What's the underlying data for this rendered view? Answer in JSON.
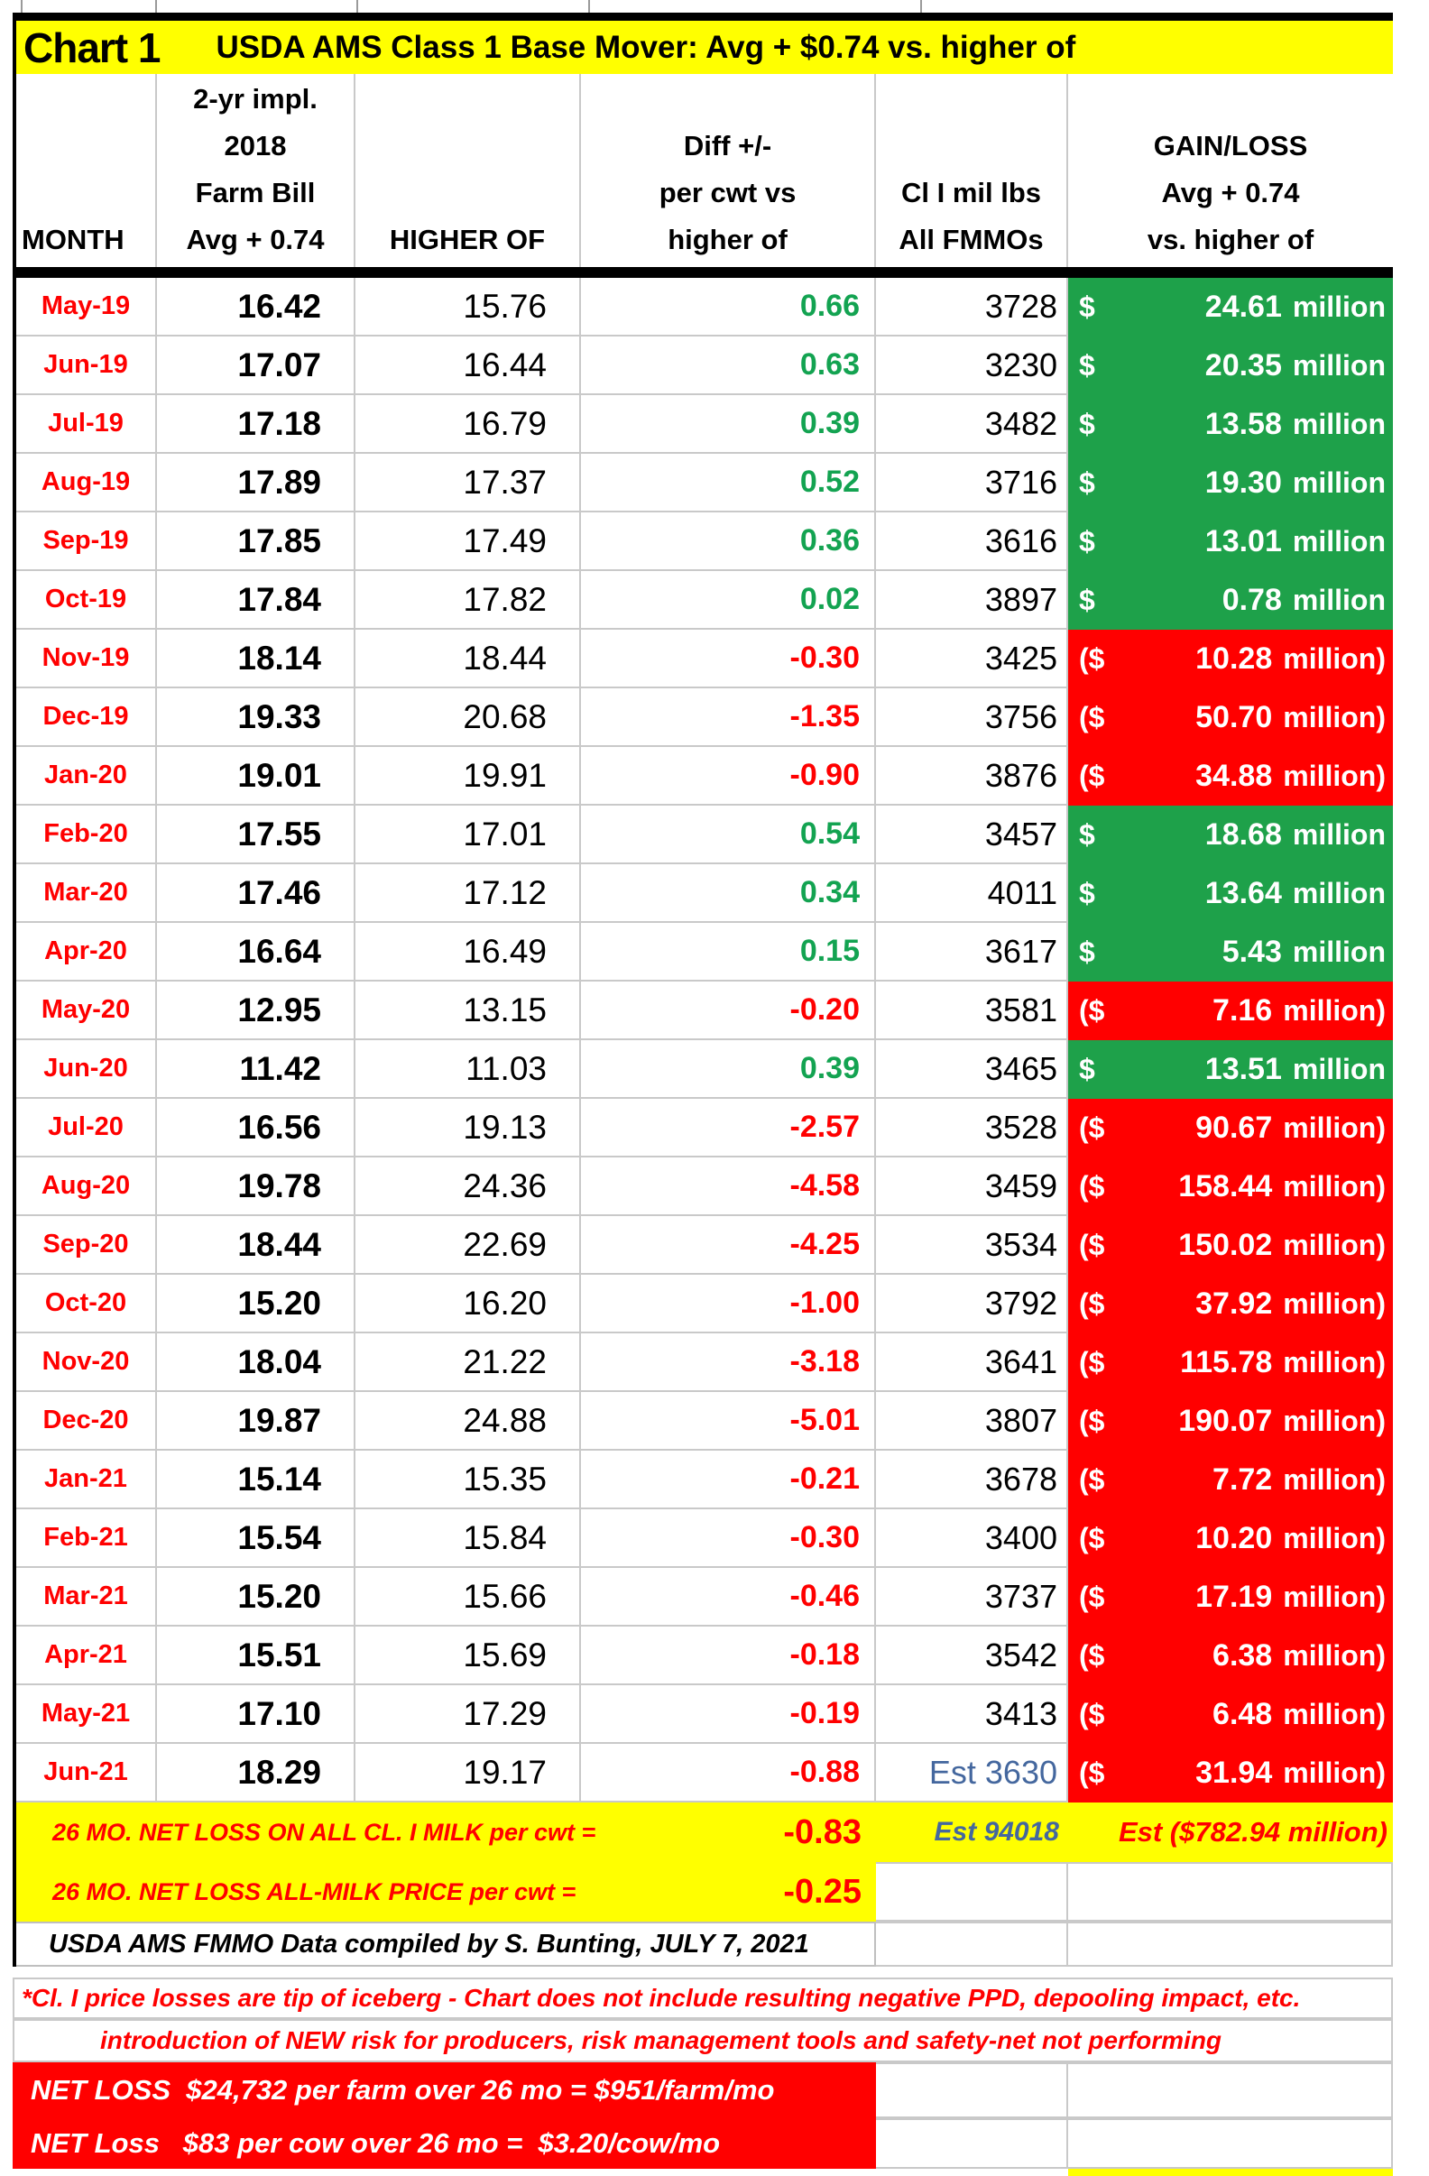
{
  "title_row": {
    "chart_label": "Chart 1",
    "title": "USDA AMS Class 1 Base Mover: Avg + $0.74 vs. higher of"
  },
  "header": {
    "month": "MONTH",
    "avg_lines": [
      "2-yr impl.",
      "2018",
      "Farm Bill",
      "Avg + 0.74"
    ],
    "higher_of": "HIGHER OF",
    "diff_lines": [
      "Diff +/-",
      "per cwt  vs",
      "higher of"
    ],
    "volume_lines": [
      "Cl I mil lbs",
      "All FMMOs"
    ],
    "gain_lines": [
      "GAIN/LOSS",
      "Avg + 0.74",
      "vs. higher of"
    ]
  },
  "gain_format": {
    "gain_prefix": "$",
    "gain_suffix": "million",
    "loss_prefix": "($",
    "loss_suffix": "million)"
  },
  "chart_data": {
    "type": "table",
    "title": "USDA AMS Class 1 Base Mover: Avg + $0.74 vs. higher of",
    "columns": [
      "MONTH",
      "2-yr impl. 2018 Farm Bill Avg + 0.74",
      "HIGHER OF",
      "Diff +/- per cwt vs higher of",
      "Cl I mil lbs All FMMOs",
      "GAIN/LOSS Avg + 0.74 vs. higher of"
    ],
    "rows": [
      {
        "month": "May-19",
        "avg_074": "16.42",
        "higher_of": "15.76",
        "diff": "0.66",
        "direction": "gain",
        "cl1_mil_lbs": "3728",
        "gain_loss_million": "24.61"
      },
      {
        "month": "Jun-19",
        "avg_074": "17.07",
        "higher_of": "16.44",
        "diff": "0.63",
        "direction": "gain",
        "cl1_mil_lbs": "3230",
        "gain_loss_million": "20.35"
      },
      {
        "month": "Jul-19",
        "avg_074": "17.18",
        "higher_of": "16.79",
        "diff": "0.39",
        "direction": "gain",
        "cl1_mil_lbs": "3482",
        "gain_loss_million": "13.58"
      },
      {
        "month": "Aug-19",
        "avg_074": "17.89",
        "higher_of": "17.37",
        "diff": "0.52",
        "direction": "gain",
        "cl1_mil_lbs": "3716",
        "gain_loss_million": "19.30"
      },
      {
        "month": "Sep-19",
        "avg_074": "17.85",
        "higher_of": "17.49",
        "diff": "0.36",
        "direction": "gain",
        "cl1_mil_lbs": "3616",
        "gain_loss_million": "13.01"
      },
      {
        "month": "Oct-19",
        "avg_074": "17.84",
        "higher_of": "17.82",
        "diff": "0.02",
        "direction": "gain",
        "cl1_mil_lbs": "3897",
        "gain_loss_million": "0.78"
      },
      {
        "month": "Nov-19",
        "avg_074": "18.14",
        "higher_of": "18.44",
        "diff": "-0.30",
        "direction": "loss",
        "cl1_mil_lbs": "3425",
        "gain_loss_million": "10.28"
      },
      {
        "month": "Dec-19",
        "avg_074": "19.33",
        "higher_of": "20.68",
        "diff": "-1.35",
        "direction": "loss",
        "cl1_mil_lbs": "3756",
        "gain_loss_million": "50.70"
      },
      {
        "month": "Jan-20",
        "avg_074": "19.01",
        "higher_of": "19.91",
        "diff": "-0.90",
        "direction": "loss",
        "cl1_mil_lbs": "3876",
        "gain_loss_million": "34.88"
      },
      {
        "month": "Feb-20",
        "avg_074": "17.55",
        "higher_of": "17.01",
        "diff": "0.54",
        "direction": "gain",
        "cl1_mil_lbs": "3457",
        "gain_loss_million": "18.68"
      },
      {
        "month": "Mar-20",
        "avg_074": "17.46",
        "higher_of": "17.12",
        "diff": "0.34",
        "direction": "gain",
        "cl1_mil_lbs": "4011",
        "gain_loss_million": "13.64"
      },
      {
        "month": "Apr-20",
        "avg_074": "16.64",
        "higher_of": "16.49",
        "diff": "0.15",
        "direction": "gain",
        "cl1_mil_lbs": "3617",
        "gain_loss_million": "5.43"
      },
      {
        "month": "May-20",
        "avg_074": "12.95",
        "higher_of": "13.15",
        "diff": "-0.20",
        "direction": "loss",
        "cl1_mil_lbs": "3581",
        "gain_loss_million": "7.16"
      },
      {
        "month": "Jun-20",
        "avg_074": "11.42",
        "higher_of": "11.03",
        "diff": "0.39",
        "direction": "gain",
        "cl1_mil_lbs": "3465",
        "gain_loss_million": "13.51"
      },
      {
        "month": "Jul-20",
        "avg_074": "16.56",
        "higher_of": "19.13",
        "diff": "-2.57",
        "direction": "loss",
        "cl1_mil_lbs": "3528",
        "gain_loss_million": "90.67"
      },
      {
        "month": "Aug-20",
        "avg_074": "19.78",
        "higher_of": "24.36",
        "diff": "-4.58",
        "direction": "loss",
        "cl1_mil_lbs": "3459",
        "gain_loss_million": "158.44"
      },
      {
        "month": "Sep-20",
        "avg_074": "18.44",
        "higher_of": "22.69",
        "diff": "-4.25",
        "direction": "loss",
        "cl1_mil_lbs": "3534",
        "gain_loss_million": "150.02"
      },
      {
        "month": "Oct-20",
        "avg_074": "15.20",
        "higher_of": "16.20",
        "diff": "-1.00",
        "direction": "loss",
        "cl1_mil_lbs": "3792",
        "gain_loss_million": "37.92"
      },
      {
        "month": "Nov-20",
        "avg_074": "18.04",
        "higher_of": "21.22",
        "diff": "-3.18",
        "direction": "loss",
        "cl1_mil_lbs": "3641",
        "gain_loss_million": "115.78"
      },
      {
        "month": "Dec-20",
        "avg_074": "19.87",
        "higher_of": "24.88",
        "diff": "-5.01",
        "direction": "loss",
        "cl1_mil_lbs": "3807",
        "gain_loss_million": "190.07"
      },
      {
        "month": "Jan-21",
        "avg_074": "15.14",
        "higher_of": "15.35",
        "diff": "-0.21",
        "direction": "loss",
        "cl1_mil_lbs": "3678",
        "gain_loss_million": "7.72"
      },
      {
        "month": "Feb-21",
        "avg_074": "15.54",
        "higher_of": "15.84",
        "diff": "-0.30",
        "direction": "loss",
        "cl1_mil_lbs": "3400",
        "gain_loss_million": "10.20"
      },
      {
        "month": "Mar-21",
        "avg_074": "15.20",
        "higher_of": "15.66",
        "diff": "-0.46",
        "direction": "loss",
        "cl1_mil_lbs": "3737",
        "gain_loss_million": "17.19"
      },
      {
        "month": "Apr-21",
        "avg_074": "15.51",
        "higher_of": "15.69",
        "diff": "-0.18",
        "direction": "loss",
        "cl1_mil_lbs": "3542",
        "gain_loss_million": "6.38"
      },
      {
        "month": "May-21",
        "avg_074": "17.10",
        "higher_of": "17.29",
        "diff": "-0.19",
        "direction": "loss",
        "cl1_mil_lbs": "3413",
        "gain_loss_million": "6.48"
      },
      {
        "month": "Jun-21",
        "avg_074": "18.29",
        "higher_of": "19.17",
        "diff": "-0.88",
        "direction": "loss",
        "cl1_mil_lbs": "Est 3630",
        "volume_estimated": true,
        "gain_loss_million": "31.94"
      }
    ],
    "summary": {
      "row1": {
        "label": "26 MO. NET LOSS ON ALL CL. I MILK per cwt =",
        "value": "-0.83",
        "volume": "Est 94018",
        "gain_loss": "Est ($782.94 million)"
      },
      "row2": {
        "label": "26 MO. NET LOSS ALL-MILK PRICE per cwt =",
        "value": "-0.25"
      },
      "source_note": "USDA AMS FMMO Data compiled by S. Bunting, JULY 7, 2021"
    }
  },
  "footnotes": {
    "note1": "*Cl. I price losses are tip of iceberg - Chart does not include resulting negative PPD, depooling impact, etc.",
    "note2": "introduction of NEW risk for producers, risk management tools and safety-net not performing",
    "net_loss_farm": "NET LOSS  $24,732 per farm over 26 mo = $951/farm/mo",
    "net_loss_cow": "NET Loss   $83 per cow over 26 mo =  $3.20/cow/mo"
  },
  "colors": {
    "highlight_yellow": "#ffff00",
    "gain_bg": "#1ea14a",
    "loss_bg": "#ff0000",
    "gain_text": "#13a351",
    "loss_text": "#ff0000",
    "month_text": "#ff0000",
    "estimate_blue": "#44679e"
  }
}
